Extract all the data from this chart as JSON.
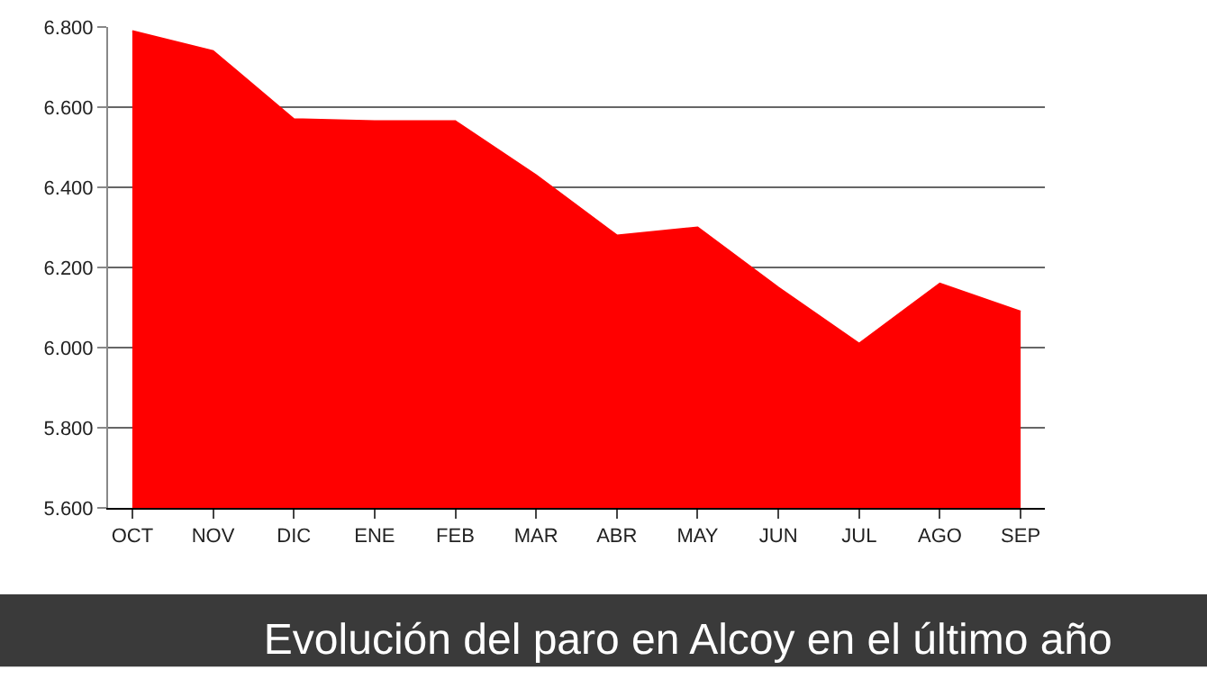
{
  "chart_data": {
    "type": "area",
    "title": "Evolución del paro en Alcoy en el último año",
    "categories": [
      "OCT",
      "NOV",
      "DIC",
      "ENE",
      "FEB",
      "MAR",
      "ABR",
      "MAY",
      "JUN",
      "JUL",
      "AGO",
      "SEP"
    ],
    "series": [
      {
        "color": "#ff0000",
        "values": [
          6790,
          6740,
          6570,
          6565,
          6565,
          6430,
          6280,
          6300,
          6150,
          6010,
          6160,
          6090
        ]
      }
    ],
    "ylim": [
      5600,
      6800
    ],
    "yticks": [
      {
        "value": 5600,
        "label": "5.600"
      },
      {
        "value": 5800,
        "label": "5.800"
      },
      {
        "value": 6000,
        "label": "6.000"
      },
      {
        "value": 6200,
        "label": "6.200"
      },
      {
        "value": 6400,
        "label": "6.400"
      },
      {
        "value": 6600,
        "label": "6.600"
      },
      {
        "value": 6800,
        "label": "6.800"
      }
    ],
    "grid": "y",
    "legend": false
  }
}
